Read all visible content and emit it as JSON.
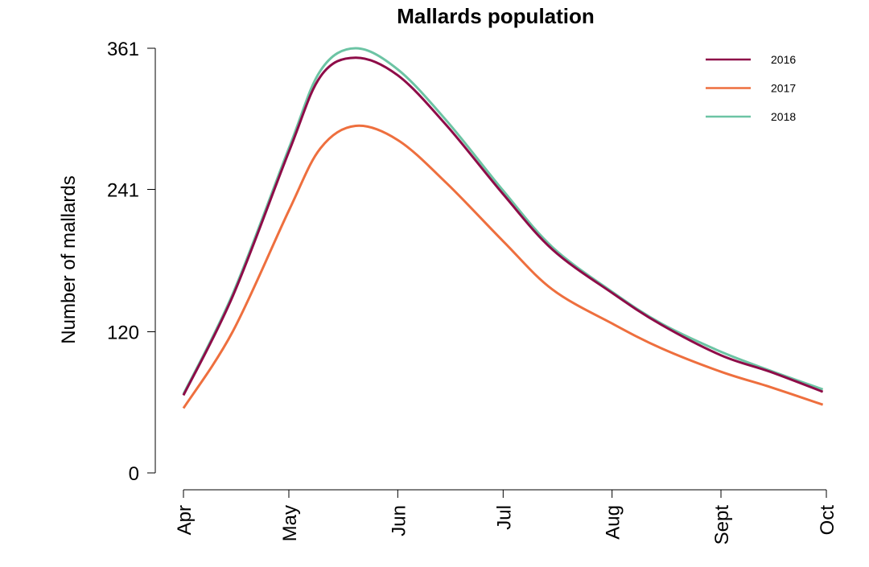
{
  "chart_data": {
    "type": "line",
    "title": "Mallards population",
    "xlabel": "",
    "ylabel": "Number of mallards",
    "x_ticks": [
      "Apr",
      "May",
      "Jun",
      "Jul",
      "Aug",
      "Sept",
      "Oct"
    ],
    "y_ticks": [
      "0",
      "120",
      "241",
      "361"
    ],
    "ylim": [
      0,
      361
    ],
    "grid": false,
    "legend_position": "top-right",
    "x": [
      "Apr 1",
      "Apr 15",
      "May 1",
      "May 10",
      "May 20",
      "Jun 1",
      "Jun 15",
      "Jul 1",
      "Jul 15",
      "Aug 1",
      "Aug 15",
      "Sept 1",
      "Sept 15",
      "Sept 30"
    ],
    "series": [
      {
        "name": "2016",
        "color": "#8E0C48",
        "values": [
          66,
          150,
          273,
          337,
          353,
          338,
          295,
          237,
          190,
          153,
          126,
          100,
          86,
          69
        ]
      },
      {
        "name": "2017",
        "color": "#EE6F3E",
        "values": [
          55,
          120,
          223,
          276,
          295,
          283,
          246,
          197,
          156,
          127,
          106,
          86,
          73,
          58
        ]
      },
      {
        "name": "2018",
        "color": "#6CC4A4",
        "values": [
          67,
          152,
          276,
          342,
          361,
          343,
          299,
          240,
          192,
          154,
          127,
          103,
          87,
          71
        ]
      }
    ]
  }
}
